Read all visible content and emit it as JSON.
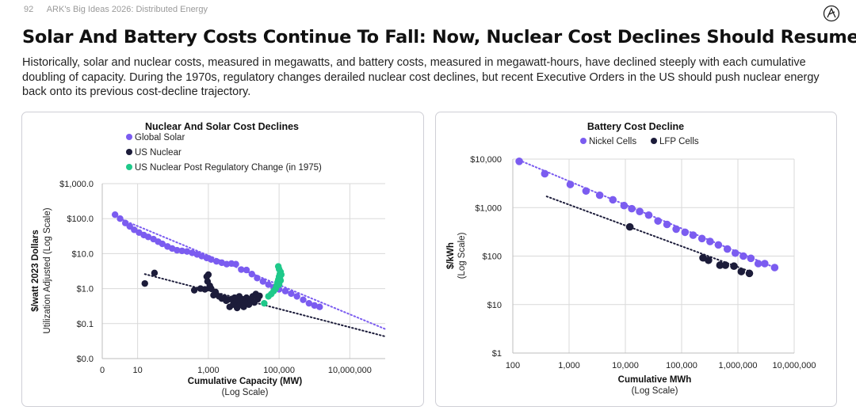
{
  "header": {
    "page_number": "92",
    "report_title": "ARK's Big Ideas 2026: Distributed Energy"
  },
  "title": "Solar And Battery Costs Continue To Fall: Now, Nuclear Cost Declines Should Resume",
  "subtitle": "Historically, solar and nuclear costs, measured in megawatts, and battery costs, measured in megawatt-hours, have declined steeply with each cumulative doubling of capacity. During the 1970s, regulatory changes derailed nuclear cost declines, but recent Executive Orders in the US should push nuclear energy back onto its previous cost-decline trajectory.",
  "colors": {
    "purple": "#7B5CF0",
    "navy": "#1c1c3a",
    "green": "#1fc98a"
  },
  "chart_data": [
    {
      "type": "scatter",
      "title": "Nuclear And Solar Cost Declines",
      "ylabel": "$/watt 2023 Dollars",
      "ylabel_sub": "Utilization Adjusted (Log Scale)",
      "xlabel": "Cumulative Capacity (MW)",
      "xlabel_sub": "(Log Scale)",
      "x_scale": "log",
      "y_scale": "log",
      "xlim": [
        1,
        100000000
      ],
      "ylim": [
        0.01,
        1000
      ],
      "x_ticks": [
        {
          "v": 1,
          "label": "0"
        },
        {
          "v": 10,
          "label": "10"
        },
        {
          "v": 1000,
          "label": "1,000"
        },
        {
          "v": 100000,
          "label": "100,000"
        },
        {
          "v": 10000000,
          "label": "10,000,000"
        }
      ],
      "y_ticks": [
        {
          "v": 0.01,
          "label": "$0.0"
        },
        {
          "v": 0.1,
          "label": "$0.1"
        },
        {
          "v": 1,
          "label": "$1.0"
        },
        {
          "v": 10,
          "label": "$10.0"
        },
        {
          "v": 100,
          "label": "$100.0"
        },
        {
          "v": 1000,
          "label": "$1,000.0"
        }
      ],
      "legend": [
        "Global Solar",
        "US Nuclear",
        "US Nuclear Post Regulatory Change (in 1975)"
      ],
      "series": [
        {
          "name": "Global Solar",
          "color": "#7B5CF0",
          "points": [
            [
              2.3,
              130
            ],
            [
              3.2,
              100
            ],
            [
              4.5,
              75
            ],
            [
              6,
              60
            ],
            [
              8,
              48
            ],
            [
              11,
              40
            ],
            [
              15,
              34
            ],
            [
              20,
              30
            ],
            [
              28,
              26
            ],
            [
              38,
              22
            ],
            [
              50,
              19
            ],
            [
              70,
              16
            ],
            [
              95,
              14
            ],
            [
              130,
              12.5
            ],
            [
              180,
              12
            ],
            [
              250,
              11.5
            ],
            [
              350,
              10.5
            ],
            [
              480,
              9.5
            ],
            [
              650,
              8.5
            ],
            [
              900,
              7.5
            ],
            [
              1200,
              6.8
            ],
            [
              1700,
              6
            ],
            [
              2400,
              5.5
            ],
            [
              3300,
              5
            ],
            [
              4500,
              5.2
            ],
            [
              6000,
              5
            ],
            [
              8500,
              3.5
            ],
            [
              12000,
              3.4
            ],
            [
              17000,
              2.6
            ],
            [
              24000,
              2
            ],
            [
              35000,
              1.6
            ],
            [
              50000,
              1.3
            ],
            [
              70000,
              1.1
            ],
            [
              100000,
              0.95
            ],
            [
              150000,
              0.85
            ],
            [
              220000,
              0.72
            ],
            [
              320000,
              0.6
            ],
            [
              480000,
              0.48
            ],
            [
              700000,
              0.38
            ],
            [
              1000000,
              0.33
            ],
            [
              1400000,
              0.3
            ]
          ]
        },
        {
          "name": "US Nuclear",
          "color": "#1c1c3a",
          "points": [
            [
              16,
              1.4
            ],
            [
              30,
              2.8
            ],
            [
              400,
              0.9
            ],
            [
              600,
              1.0
            ],
            [
              800,
              0.95
            ],
            [
              900,
              2.2
            ],
            [
              950,
              1.6
            ],
            [
              1000,
              2.5
            ],
            [
              1100,
              1.2
            ],
            [
              1200,
              1.0
            ],
            [
              1400,
              0.65
            ],
            [
              1600,
              0.8
            ],
            [
              2000,
              0.6
            ],
            [
              2400,
              0.52
            ],
            [
              2800,
              0.55
            ],
            [
              3200,
              0.45
            ],
            [
              3500,
              0.48
            ],
            [
              4000,
              0.3
            ],
            [
              4500,
              0.5
            ],
            [
              5000,
              0.35
            ],
            [
              5500,
              0.55
            ],
            [
              6000,
              0.4
            ],
            [
              6500,
              0.28
            ],
            [
              7000,
              0.45
            ],
            [
              7500,
              0.6
            ],
            [
              8000,
              0.35
            ],
            [
              9000,
              0.5
            ],
            [
              10000,
              0.3
            ],
            [
              11000,
              0.42
            ],
            [
              12000,
              0.55
            ],
            [
              14000,
              0.35
            ],
            [
              16000,
              0.48
            ],
            [
              18000,
              0.6
            ],
            [
              20000,
              0.4
            ],
            [
              22000,
              0.7
            ],
            [
              25000,
              0.5
            ],
            [
              28000,
              0.62
            ]
          ]
        },
        {
          "name": "US Nuclear Post Regulatory Change (in 1975)",
          "color": "#1fc98a",
          "points": [
            [
              38000,
              0.38
            ],
            [
              50000,
              0.6
            ],
            [
              60000,
              0.7
            ],
            [
              70000,
              0.85
            ],
            [
              80000,
              1.0
            ],
            [
              85000,
              1.2
            ],
            [
              90000,
              1.5
            ],
            [
              95000,
              1.8
            ],
            [
              100000,
              2.2
            ],
            [
              105000,
              2.6
            ],
            [
              110000,
              3.0
            ],
            [
              95000,
              4.3
            ],
            [
              100000,
              3.6
            ],
            [
              105000,
              2.0
            ],
            [
              110000,
              1.7
            ],
            [
              115000,
              2.5
            ],
            [
              100000,
              1.3
            ]
          ]
        }
      ],
      "trendlines": [
        {
          "color": "#7B5CF0",
          "style": "dotted",
          "from": [
            4,
            90
          ],
          "to": [
            100000000,
            0.07
          ]
        },
        {
          "color": "#1c1c3a",
          "style": "dotted",
          "from": [
            16,
            2.6
          ],
          "to": [
            100000000,
            0.043
          ]
        }
      ]
    },
    {
      "type": "scatter",
      "title": "Battery Cost Decline",
      "ylabel": "$/kWh",
      "ylabel_sub": "(Log Scale)",
      "xlabel": "Cumulative MWh",
      "xlabel_sub": "(Log Scale)",
      "x_scale": "log",
      "y_scale": "log",
      "xlim": [
        100,
        10000000
      ],
      "ylim": [
        1,
        10000
      ],
      "x_ticks": [
        {
          "v": 100,
          "label": "100"
        },
        {
          "v": 1000,
          "label": "1,000"
        },
        {
          "v": 10000,
          "label": "10,000"
        },
        {
          "v": 100000,
          "label": "100,000"
        },
        {
          "v": 1000000,
          "label": "1,000,000"
        },
        {
          "v": 10000000,
          "label": "10,000,000"
        }
      ],
      "y_ticks": [
        {
          "v": 1,
          "label": "$1"
        },
        {
          "v": 10,
          "label": "$10"
        },
        {
          "v": 100,
          "label": "$100"
        },
        {
          "v": 1000,
          "label": "$1,000"
        },
        {
          "v": 10000,
          "label": "$10,000"
        }
      ],
      "legend": [
        "Nickel Cells",
        "LFP Cells"
      ],
      "series": [
        {
          "name": "Nickel Cells",
          "color": "#7B5CF0",
          "points": [
            [
              130,
              9000
            ],
            [
              370,
              5000
            ],
            [
              1050,
              3000
            ],
            [
              2000,
              2200
            ],
            [
              3500,
              1800
            ],
            [
              6000,
              1450
            ],
            [
              9500,
              1100
            ],
            [
              13000,
              950
            ],
            [
              18000,
              830
            ],
            [
              26000,
              700
            ],
            [
              38000,
              530
            ],
            [
              55000,
              450
            ],
            [
              80000,
              360
            ],
            [
              115000,
              310
            ],
            [
              160000,
              270
            ],
            [
              230000,
              230
            ],
            [
              320000,
              200
            ],
            [
              450000,
              170
            ],
            [
              650000,
              140
            ],
            [
              900000,
              115
            ],
            [
              1250000,
              100
            ],
            [
              1700000,
              90
            ],
            [
              2300000,
              70
            ],
            [
              3000000,
              70
            ],
            [
              4500000,
              58
            ]
          ]
        },
        {
          "name": "LFP Cells",
          "color": "#1c1c3a",
          "points": [
            [
              12000,
              400
            ],
            [
              240000,
              92
            ],
            [
              300000,
              82
            ],
            [
              480000,
              65
            ],
            [
              600000,
              65
            ],
            [
              850000,
              62
            ],
            [
              1150000,
              48
            ],
            [
              1600000,
              44
            ]
          ]
        }
      ],
      "trendlines": [
        {
          "color": "#7B5CF0",
          "style": "dotted",
          "from": [
            130,
            9500
          ],
          "to": [
            4500000,
            58
          ]
        },
        {
          "color": "#1c1c3a",
          "style": "dotted",
          "from": [
            400,
            1700
          ],
          "to": [
            1500000,
            50
          ]
        }
      ]
    }
  ]
}
